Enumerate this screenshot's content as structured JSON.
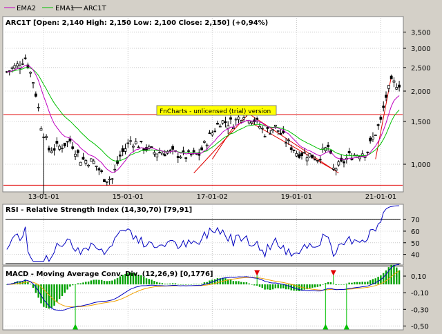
{
  "legend": {
    "items": [
      {
        "label": "EMA2",
        "color": "#c000c0"
      },
      {
        "label": "EMA1",
        "color": "#00c000"
      },
      {
        "label": "ARC1T",
        "color": "#000000"
      }
    ]
  },
  "watermark": "FnCharts - unlicensed (trial) version",
  "chart_data": [
    {
      "type": "candlestick",
      "title": "ARC1T [Open: 2,140  High: 2,150  Low: 2,100  Close: 2,150] (+0,94%)",
      "scale": "log",
      "ylim": [
        0.78,
        4.0
      ],
      "yticks": [
        1.0,
        1.5,
        2.0,
        2.5,
        3.0,
        3.5
      ],
      "ytick_labels": [
        "1,000",
        "1,500",
        "2,000",
        "2,500",
        "3,000",
        "3,500"
      ],
      "xtick_labels": [
        "13-01-01",
        "15-01-01",
        "17-01-02",
        "19-01-01",
        "21-01-01"
      ],
      "xtick_index": [
        14,
        46,
        78,
        110,
        142
      ],
      "horizontal_lines": [
        1.6,
        0.82
      ],
      "horizontal_line_color": "#e00000",
      "channel_lines": [
        {
          "from": [
            71,
            0.92
          ],
          "to": [
            92,
            1.62
          ],
          "color": "#e00000"
        },
        {
          "from": [
            78,
            1.05
          ],
          "to": [
            86,
            1.42
          ],
          "color": "#e00000"
        },
        {
          "from": [
            88,
            1.72
          ],
          "to": [
            126,
            0.92
          ],
          "color": "#e00000"
        },
        {
          "from": [
            91,
            1.52
          ],
          "to": [
            124,
            0.95
          ],
          "color": "#e00000"
        },
        {
          "from": [
            140,
            1.05
          ],
          "to": [
            146,
            2.3
          ],
          "color": "#e00000"
        }
      ],
      "series": [
        {
          "name": "ARC1T",
          "values": "ohlc"
        },
        {
          "name": "EMA1",
          "color": "#00c000"
        },
        {
          "name": "EMA2",
          "color": "#c000c0"
        }
      ]
    },
    {
      "type": "line",
      "title": "RSI - Relative Strength Index (14,30,70) [79,91]",
      "ylim": [
        32,
        82
      ],
      "yticks": [
        40,
        50,
        60,
        70
      ],
      "ytick_labels": [
        "40",
        "50",
        "60",
        "70"
      ],
      "reference_lines": [
        70,
        30
      ],
      "series": [
        {
          "name": "RSI",
          "color": "#0000c0"
        }
      ]
    },
    {
      "type": "bar+line",
      "title": "MACD - Moving Average Conv. Div. (12,26,9) [0,1776]",
      "ylim": [
        -0.53,
        0.2
      ],
      "yticks": [
        0.1,
        -0.1,
        -0.3,
        -0.5
      ],
      "ytick_labels": [
        "0,10",
        "-0,10",
        "-0,30",
        "-0,50"
      ],
      "series": [
        {
          "name": "MACD",
          "color": "#0000c0"
        },
        {
          "name": "Signal",
          "color": "#f0a000"
        },
        {
          "name": "Histogram",
          "color": "#00a000"
        }
      ],
      "markers": [
        {
          "index": 26,
          "value": -0.5,
          "type": "buy"
        },
        {
          "index": 95,
          "value": 0.13,
          "type": "sell"
        },
        {
          "index": 124,
          "value": 0.13,
          "type": "sell"
        },
        {
          "index": 121,
          "value": -0.5,
          "type": "buy"
        },
        {
          "index": 129,
          "value": -0.5,
          "type": "buy"
        }
      ]
    }
  ]
}
